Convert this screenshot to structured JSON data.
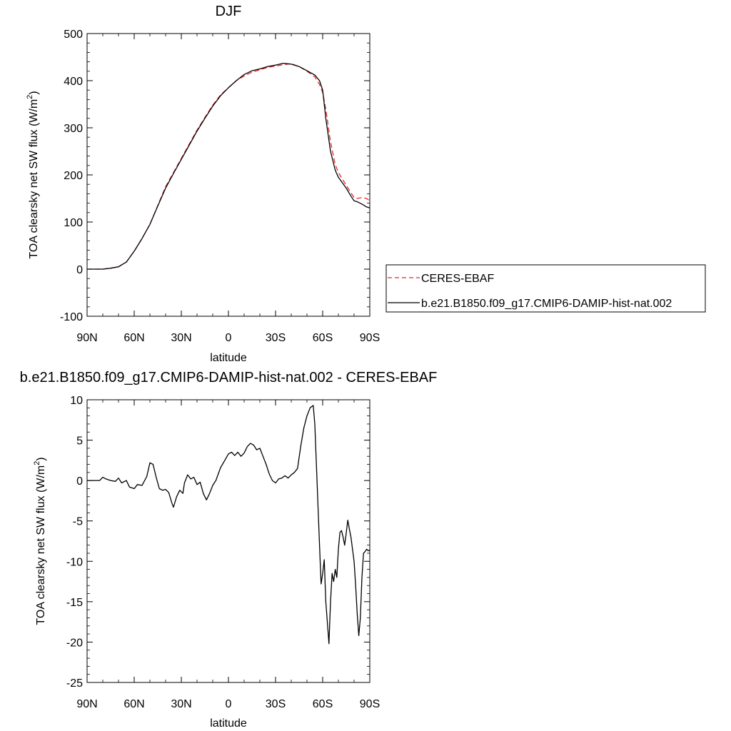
{
  "colors": {
    "model_line": "#000000",
    "obs_line": "#e8262c",
    "background": "#ffffff"
  },
  "chart_data": [
    {
      "type": "line",
      "title": "DJF",
      "xlabel": "latitude",
      "ylabel_main": "TOA clearsky net SW flux (W/m",
      "ylabel_sup": "2",
      "ylabel_close": ")",
      "xlim": [
        90,
        -90
      ],
      "ylim": [
        -100,
        500
      ],
      "x_tick_values": [
        90,
        60,
        30,
        0,
        -30,
        -60,
        -90
      ],
      "x_tick_labels": [
        "90N",
        "60N",
        "30N",
        "0",
        "30S",
        "60S",
        "90S"
      ],
      "y_tick_values": [
        -100,
        0,
        100,
        200,
        300,
        400,
        500
      ],
      "y_tick_labels": [
        "-100",
        "0",
        "100",
        "200",
        "300",
        "400",
        "500"
      ],
      "legend_position": "right",
      "series": [
        {
          "name": "CERES-EBAF",
          "style": "dashed",
          "color": "#e8262c",
          "x": [
            90,
            85,
            80,
            75,
            70,
            65,
            60,
            55,
            50,
            45,
            40,
            35,
            30,
            25,
            20,
            15,
            10,
            5,
            0,
            -5,
            -10,
            -15,
            -20,
            -25,
            -30,
            -35,
            -40,
            -45,
            -50,
            -55,
            -58,
            -60,
            -62,
            -65,
            -68,
            -70,
            -75,
            -78,
            -80,
            -82,
            -85,
            -88,
            -90
          ],
          "y": [
            0,
            0,
            0,
            2,
            5,
            15,
            38,
            65,
            95,
            135,
            175,
            205,
            235,
            265,
            295,
            322,
            348,
            370,
            385,
            400,
            410,
            418,
            423,
            428,
            431,
            434,
            436,
            430,
            420,
            408,
            392,
            375,
            340,
            270,
            222,
            205,
            178,
            162,
            152,
            150,
            152,
            150,
            145
          ]
        },
        {
          "name": "b.e21.B1850.f09_g17.CMIP6-DAMIP-hist-nat.002",
          "style": "solid",
          "color": "#000000",
          "x": [
            90,
            85,
            80,
            75,
            70,
            65,
            60,
            55,
            50,
            45,
            40,
            35,
            30,
            25,
            20,
            15,
            10,
            5,
            0,
            -5,
            -10,
            -15,
            -20,
            -25,
            -30,
            -35,
            -40,
            -45,
            -50,
            -55,
            -58,
            -60,
            -62,
            -65,
            -68,
            -70,
            -75,
            -78,
            -80,
            -82,
            -85,
            -88,
            -90
          ],
          "y": [
            0,
            0,
            0,
            2,
            5,
            15,
            38,
            65,
            95,
            134,
            172,
            203,
            233,
            263,
            293,
            320,
            346,
            368,
            385,
            400,
            413,
            421,
            425,
            430,
            433,
            437,
            435,
            430,
            421,
            412,
            400,
            380,
            320,
            250,
            210,
            195,
            172,
            155,
            145,
            143,
            138,
            132,
            130
          ]
        }
      ]
    },
    {
      "type": "line",
      "title": "b.e21.B1850.f09_g17.CMIP6-DAMIP-hist-nat.002 - CERES-EBAF",
      "xlabel": "latitude",
      "ylabel_main": "TOA clearsky net SW flux (W/m",
      "ylabel_sup": "2",
      "ylabel_close": ")",
      "xlim": [
        90,
        -90
      ],
      "ylim": [
        -25,
        10
      ],
      "x_tick_values": [
        90,
        60,
        30,
        0,
        -30,
        -60,
        -90
      ],
      "x_tick_labels": [
        "90N",
        "60N",
        "30N",
        "0",
        "30S",
        "60S",
        "90S"
      ],
      "y_tick_values": [
        -25,
        -20,
        -15,
        -10,
        -5,
        0,
        5,
        10
      ],
      "y_tick_labels": [
        "-25",
        "-20",
        "-15",
        "-10",
        "-5",
        "0",
        "5",
        "10"
      ],
      "series": [
        {
          "style": "solid",
          "color": "#000000",
          "x": [
            90,
            82,
            80,
            78,
            75,
            72,
            70,
            68,
            65,
            63,
            60,
            58,
            55,
            52,
            50,
            48,
            46,
            44,
            42,
            40,
            38,
            36,
            35,
            33,
            31,
            29,
            28,
            26,
            24,
            22,
            20,
            18,
            16,
            14,
            12,
            10,
            8,
            5,
            2,
            0,
            -2,
            -4,
            -6,
            -8,
            -10,
            -12,
            -14,
            -16,
            -18,
            -20,
            -22,
            -24,
            -26,
            -28,
            -30,
            -32,
            -34,
            -36,
            -38,
            -40,
            -42,
            -44,
            -46,
            -48,
            -50,
            -52,
            -54,
            -55,
            -56,
            -57,
            -58,
            -59,
            -60,
            -61,
            -62,
            -64,
            -65,
            -66,
            -67,
            -68,
            -69,
            -70,
            -71,
            -72,
            -73,
            -74,
            -75,
            -76,
            -77,
            -78,
            -79,
            -80,
            -81,
            -82,
            -83,
            -84,
            -85,
            -86,
            -87,
            -88,
            -89,
            -90
          ],
          "y": [
            0,
            0,
            0.4,
            0.2,
            0,
            -0.1,
            0.3,
            -0.3,
            0.0,
            -0.8,
            -1.0,
            -0.5,
            -0.6,
            0.5,
            2.2,
            2.0,
            0.4,
            -1.0,
            -1.2,
            -1.1,
            -1.5,
            -2.8,
            -3.3,
            -2.0,
            -1.2,
            -1.6,
            -0.3,
            0.7,
            0.2,
            0.4,
            -0.5,
            -0.2,
            -1.6,
            -2.4,
            -1.6,
            -0.6,
            0.0,
            1.6,
            2.6,
            3.3,
            3.5,
            3.1,
            3.5,
            3.0,
            3.4,
            4.2,
            4.6,
            4.4,
            3.8,
            4.0,
            3.0,
            2.0,
            0.8,
            0.0,
            -0.3,
            0.2,
            0.3,
            0.6,
            0.3,
            0.7,
            1.0,
            1.5,
            4.2,
            6.5,
            8.0,
            9.0,
            9.3,
            7.0,
            2.0,
            -3.0,
            -8.0,
            -12.8,
            -11.5,
            -9.8,
            -15.0,
            -20.2,
            -15.0,
            -11.5,
            -12.5,
            -11.0,
            -12.0,
            -8.5,
            -6.4,
            -6.2,
            -7.0,
            -8.0,
            -6.5,
            -4.9,
            -6.0,
            -7.0,
            -8.5,
            -10.0,
            -13.0,
            -16.5,
            -19.2,
            -17.0,
            -12.0,
            -9.0,
            -8.8,
            -8.5,
            -8.7,
            -8.6
          ]
        }
      ]
    }
  ]
}
